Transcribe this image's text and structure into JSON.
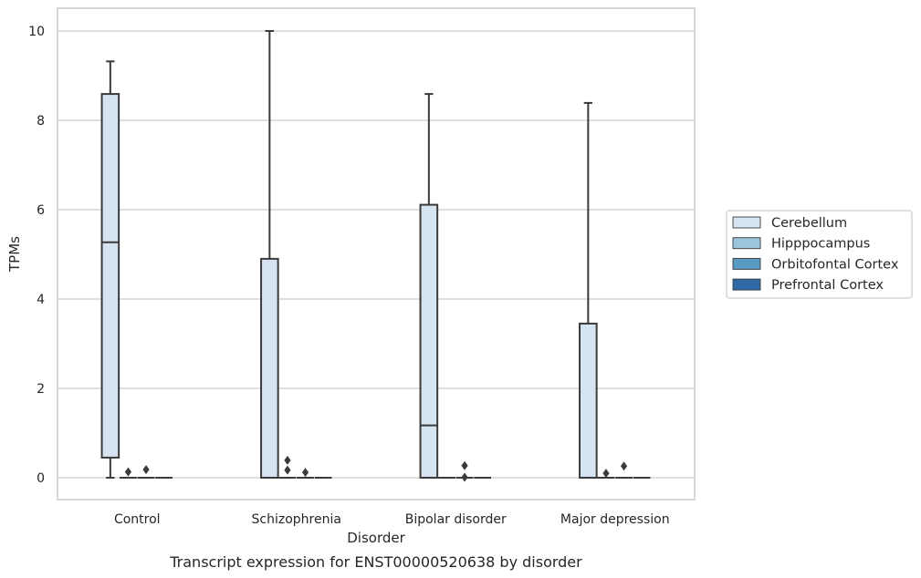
{
  "chart_data": {
    "type": "boxplot",
    "xlabel": "Disorder",
    "ylabel": "TPMs",
    "caption": "Transcript expression for ENST00000520638 by disorder",
    "categories": [
      "Control",
      "Schizophrenia",
      "Bipolar disorder",
      "Major depression"
    ],
    "ylim": [
      -0.48,
      10.5
    ],
    "yticks": [
      0,
      2,
      4,
      6,
      8,
      10
    ],
    "grid": true,
    "legend_position": "right",
    "colors": {
      "Cerebellum": "#d6e4f1",
      "Hipppocampus": "#9bc4dd",
      "Orbitofontal Cortex": "#5b9ac5",
      "Prefrontal Cortex": "#2e69a6",
      "line": "#3b3b3b",
      "grid": "#cccccc"
    },
    "series": [
      {
        "name": "Cerebellum",
        "boxes": [
          {
            "min": 0.0,
            "q1": 0.45,
            "median": 5.27,
            "q3": 8.59,
            "max": 9.32,
            "outliers": []
          },
          {
            "min": 0.0,
            "q1": 0.0,
            "median": 0.0,
            "q3": 4.9,
            "max": 10.0,
            "outliers": []
          },
          {
            "min": 0.0,
            "q1": 0.0,
            "median": 1.17,
            "q3": 6.11,
            "max": 8.59,
            "outliers": []
          },
          {
            "min": 0.0,
            "q1": 0.0,
            "median": 0.0,
            "q3": 3.45,
            "max": 8.39,
            "outliers": []
          }
        ]
      },
      {
        "name": "Hipppocampus",
        "boxes": [
          {
            "min": 0.0,
            "q1": 0.0,
            "median": 0.0,
            "q3": 0.0,
            "max": 0.0,
            "outliers": [
              0.13
            ]
          },
          {
            "min": 0.0,
            "q1": 0.0,
            "median": 0.0,
            "q3": 0.0,
            "max": 0.0,
            "outliers": [
              0.39,
              0.17
            ]
          },
          {
            "min": 0.0,
            "q1": 0.0,
            "median": 0.0,
            "q3": 0.0,
            "max": 0.0,
            "outliers": []
          },
          {
            "min": 0.0,
            "q1": 0.0,
            "median": 0.0,
            "q3": 0.0,
            "max": 0.0,
            "outliers": [
              0.1
            ]
          }
        ]
      },
      {
        "name": "Orbitofontal Cortex",
        "boxes": [
          {
            "min": 0.0,
            "q1": 0.0,
            "median": 0.0,
            "q3": 0.0,
            "max": 0.0,
            "outliers": [
              0.18
            ]
          },
          {
            "min": 0.0,
            "q1": 0.0,
            "median": 0.0,
            "q3": 0.0,
            "max": 0.0,
            "outliers": [
              0.12
            ]
          },
          {
            "min": 0.0,
            "q1": 0.0,
            "median": 0.0,
            "q3": 0.0,
            "max": 0.0,
            "outliers": [
              0.27,
              0.01
            ]
          },
          {
            "min": 0.0,
            "q1": 0.0,
            "median": 0.0,
            "q3": 0.0,
            "max": 0.0,
            "outliers": [
              0.26
            ]
          }
        ]
      },
      {
        "name": "Prefrontal Cortex",
        "boxes": [
          {
            "min": 0.0,
            "q1": 0.0,
            "median": 0.0,
            "q3": 0.0,
            "max": 0.0,
            "outliers": []
          },
          {
            "min": 0.0,
            "q1": 0.0,
            "median": 0.0,
            "q3": 0.0,
            "max": 0.0,
            "outliers": []
          },
          {
            "min": 0.0,
            "q1": 0.0,
            "median": 0.0,
            "q3": 0.0,
            "max": 0.0,
            "outliers": []
          },
          {
            "min": 0.0,
            "q1": 0.0,
            "median": 0.0,
            "q3": 0.0,
            "max": 0.0,
            "outliers": []
          }
        ]
      }
    ]
  }
}
